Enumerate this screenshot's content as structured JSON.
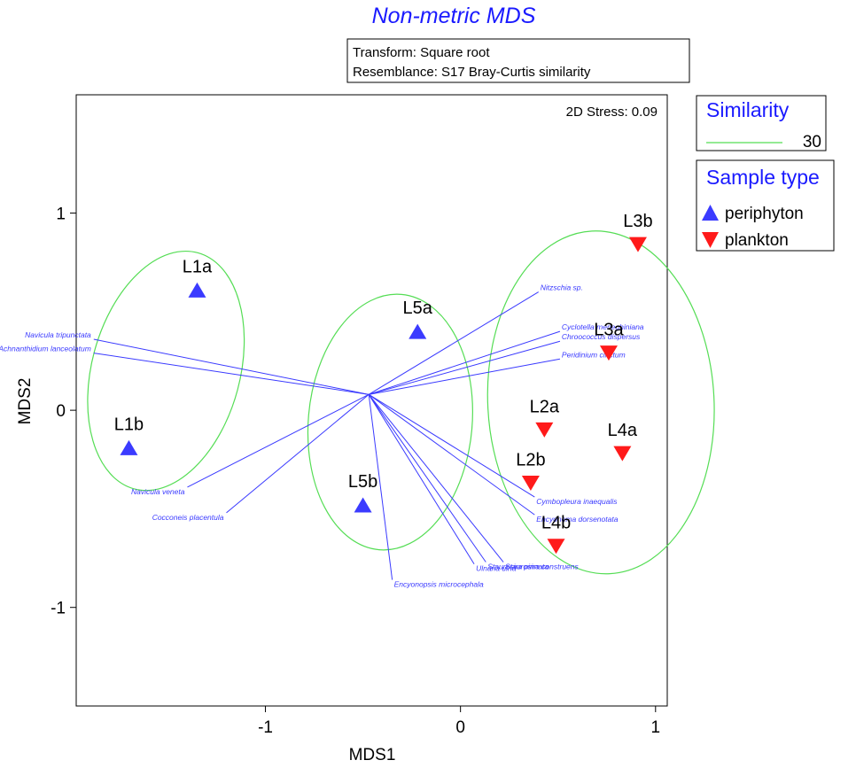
{
  "chart_data": {
    "type": "scatter",
    "title": "Non-metric MDS",
    "info_lines": [
      "Transform: Square root",
      "Resemblance: S17 Bray-Curtis similarity"
    ],
    "stress_label": "2D Stress: 0.09",
    "xlabel": "MDS1",
    "ylabel": "MDS2",
    "xlim": [
      -1.97,
      1.06
    ],
    "ylim": [
      -1.5,
      1.6
    ],
    "x_ticks": [
      -1,
      0,
      1
    ],
    "y_ticks": [
      -1,
      0,
      1
    ],
    "x_tick_labels": [
      "-1",
      "0",
      "1"
    ],
    "y_tick_labels": [
      "-1",
      "0",
      "1"
    ],
    "series": [
      {
        "name": "periphyton",
        "marker": "triangle-up",
        "color": "#3b3bff",
        "points": [
          {
            "label": "L1a",
            "x": -1.35,
            "y": 0.61
          },
          {
            "label": "L1b",
            "x": -1.7,
            "y": -0.19
          },
          {
            "label": "L5a",
            "x": -0.22,
            "y": 0.4
          },
          {
            "label": "L5b",
            "x": -0.5,
            "y": -0.48
          }
        ]
      },
      {
        "name": "plankton",
        "marker": "triangle-down",
        "color": "#ff1a1a",
        "points": [
          {
            "label": "L3b",
            "x": 0.91,
            "y": 0.84
          },
          {
            "label": "L3a",
            "x": 0.76,
            "y": 0.29
          },
          {
            "label": "L2a",
            "x": 0.43,
            "y": -0.1
          },
          {
            "label": "L4a",
            "x": 0.83,
            "y": -0.22
          },
          {
            "label": "L2b",
            "x": 0.36,
            "y": -0.37
          },
          {
            "label": "L4b",
            "x": 0.49,
            "y": -0.69
          }
        ]
      }
    ],
    "vector_origin": {
      "x": -0.47,
      "y": 0.08
    },
    "vectors": [
      {
        "name": "Navicula tripunctata",
        "x": -1.88,
        "y": 0.36
      },
      {
        "name": "Achnanthidium lanceolatum",
        "x": -1.88,
        "y": 0.29
      },
      {
        "name": "Navicula veneta",
        "x": -1.4,
        "y": -0.39
      },
      {
        "name": "Cocconeis placentula",
        "x": -1.2,
        "y": -0.52
      },
      {
        "name": "Nitzschia sp.",
        "x": 0.4,
        "y": 0.6
      },
      {
        "name": "Cyclotella meneghiniana",
        "x": 0.51,
        "y": 0.4
      },
      {
        "name": "Chroococcus dispersus",
        "x": 0.51,
        "y": 0.35
      },
      {
        "name": "Peridinium cinctum",
        "x": 0.51,
        "y": 0.26
      },
      {
        "name": "Cymbopleura inaequalis",
        "x": 0.38,
        "y": -0.44
      },
      {
        "name": "Encyonema dorsenotata",
        "x": 0.38,
        "y": -0.53
      },
      {
        "name": "Staurosira construens",
        "x": 0.22,
        "y": -0.77
      },
      {
        "name": "Staurosira pinnata",
        "x": 0.13,
        "y": -0.77
      },
      {
        "name": "Ulnaria ulna",
        "x": 0.07,
        "y": -0.78
      },
      {
        "name": "Encyonopsis microcephala",
        "x": -0.35,
        "y": -0.86
      }
    ],
    "ellipses": [
      {
        "cx": -1.51,
        "cy": 0.2,
        "rx": 0.38,
        "ry": 0.62,
        "rotate": 15
      },
      {
        "cx": -0.36,
        "cy": -0.06,
        "rx": 0.42,
        "ry": 0.65,
        "rotate": 5
      },
      {
        "cx": 0.72,
        "cy": 0.04,
        "rx": 0.58,
        "ry": 0.87,
        "rotate": -3
      }
    ],
    "legend": {
      "similarity_title": "Similarity",
      "similarity_value": "30",
      "sample_type_title": "Sample type",
      "placement": "right",
      "colors": {
        "ellipse": "#55dd55",
        "vector": "#3a3aff",
        "periphyton": "#3b3bff",
        "plankton": "#ff1a1a"
      }
    }
  }
}
